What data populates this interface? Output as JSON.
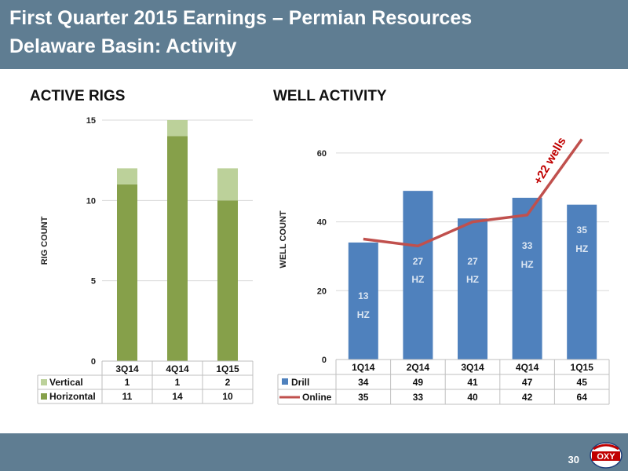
{
  "header": {
    "title_line1": "First Quarter 2015 Earnings – Permian Resources",
    "title_line2": "Delaware Basin: Activity"
  },
  "page_number": "30",
  "logo_text": "OXY",
  "colors": {
    "header_bg": "#5f7d92",
    "horizontal": "#86a04a",
    "vertical": "#bcd19a",
    "drill": "#4f81bd",
    "online": "#c0504d",
    "annotation": "#c00000"
  },
  "chart_data": [
    {
      "type": "bar",
      "stacked": true,
      "title": "ACTIVE RIGS",
      "ylabel": "RIG COUNT",
      "ylim": [
        0,
        15
      ],
      "yticks": [
        0,
        5,
        10,
        15
      ],
      "grid": true,
      "categories": [
        "3Q14",
        "4Q14",
        "1Q15"
      ],
      "series": [
        {
          "name": "Horizontal",
          "values": [
            11,
            14,
            10
          ]
        },
        {
          "name": "Vertical",
          "values": [
            1,
            1,
            2
          ]
        }
      ]
    },
    {
      "type": "bar",
      "title": "WELL ACTIVITY",
      "ylabel": "WELL COUNT",
      "ylim": [
        0,
        65
      ],
      "yticks": [
        0,
        20,
        40,
        60
      ],
      "grid": true,
      "categories": [
        "1Q14",
        "2Q14",
        "3Q14",
        "4Q14",
        "1Q15"
      ],
      "series": [
        {
          "name": "Drill",
          "type": "bar",
          "values": [
            34,
            49,
            41,
            47,
            45
          ]
        },
        {
          "name": "Online",
          "type": "line",
          "values": [
            35,
            33,
            40,
            42,
            64
          ]
        }
      ],
      "bar_labels": [
        {
          "number": "13",
          "unit": "HZ"
        },
        {
          "number": "27",
          "unit": "HZ"
        },
        {
          "number": "27",
          "unit": "HZ"
        },
        {
          "number": "33",
          "unit": "HZ"
        },
        {
          "number": "35",
          "unit": "HZ"
        }
      ],
      "annotation": "+22 wells"
    }
  ]
}
